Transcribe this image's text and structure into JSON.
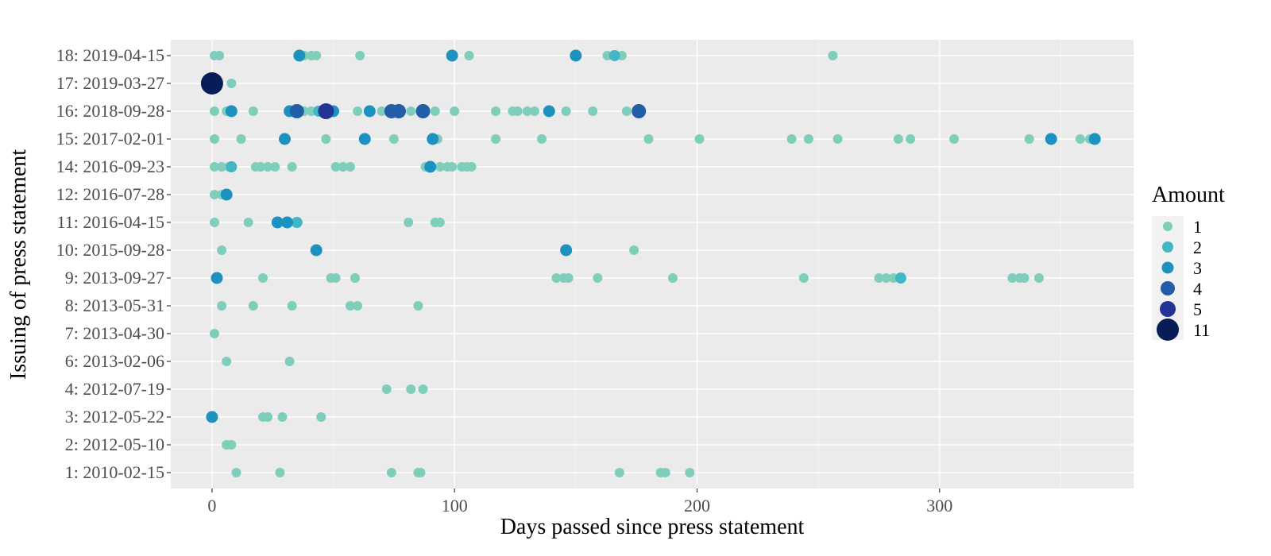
{
  "chart_data": {
    "type": "scatter",
    "xlabel": "Days passed since press statement",
    "ylabel": "Issuing of press statement",
    "xlim": [
      -17,
      380
    ],
    "x_ticks": [
      0,
      100,
      200,
      300
    ],
    "categories": [
      "1: 2010-02-15",
      "2: 2012-05-10",
      "3: 2012-05-22",
      "4: 2012-07-19",
      "6: 2013-02-06",
      "7: 2013-04-30",
      "8: 2013-05-31",
      "9: 2013-09-27",
      "10: 2015-09-28",
      "11: 2016-04-15",
      "12: 2016-07-28",
      "14: 2016-09-23",
      "15: 2017-02-01",
      "16: 2018-09-28",
      "17: 2019-03-27",
      "18: 2019-04-15"
    ],
    "legend": {
      "title": "Amount",
      "position": "right",
      "entries": [
        {
          "label": "1",
          "amount": 1,
          "color": "#7fcdbb"
        },
        {
          "label": "2",
          "amount": 2,
          "color": "#41b6c4"
        },
        {
          "label": "3",
          "amount": 3,
          "color": "#1d91c0"
        },
        {
          "label": "4",
          "amount": 4,
          "color": "#225ea8"
        },
        {
          "label": "5",
          "amount": 5,
          "color": "#253494"
        },
        {
          "label": "11",
          "amount": 11,
          "color": "#081d58"
        }
      ]
    },
    "grid": true,
    "background": "#ebebeb",
    "points": [
      {
        "y": "1: 2010-02-15",
        "x": 10,
        "amount": 1
      },
      {
        "y": "1: 2010-02-15",
        "x": 28,
        "amount": 1
      },
      {
        "y": "1: 2010-02-15",
        "x": 74,
        "amount": 1
      },
      {
        "y": "1: 2010-02-15",
        "x": 85,
        "amount": 1
      },
      {
        "y": "1: 2010-02-15",
        "x": 86,
        "amount": 1
      },
      {
        "y": "1: 2010-02-15",
        "x": 168,
        "amount": 1
      },
      {
        "y": "1: 2010-02-15",
        "x": 185,
        "amount": 1
      },
      {
        "y": "1: 2010-02-15",
        "x": 187,
        "amount": 1
      },
      {
        "y": "1: 2010-02-15",
        "x": 197,
        "amount": 1
      },
      {
        "y": "2: 2012-05-10",
        "x": 6,
        "amount": 1
      },
      {
        "y": "2: 2012-05-10",
        "x": 8,
        "amount": 1
      },
      {
        "y": "3: 2012-05-22",
        "x": 0,
        "amount": 3
      },
      {
        "y": "3: 2012-05-22",
        "x": 21,
        "amount": 1
      },
      {
        "y": "3: 2012-05-22",
        "x": 23,
        "amount": 1
      },
      {
        "y": "3: 2012-05-22",
        "x": 29,
        "amount": 1
      },
      {
        "y": "3: 2012-05-22",
        "x": 45,
        "amount": 1
      },
      {
        "y": "4: 2012-07-19",
        "x": 72,
        "amount": 1
      },
      {
        "y": "4: 2012-07-19",
        "x": 82,
        "amount": 1
      },
      {
        "y": "4: 2012-07-19",
        "x": 87,
        "amount": 1
      },
      {
        "y": "6: 2013-02-06",
        "x": 6,
        "amount": 1
      },
      {
        "y": "6: 2013-02-06",
        "x": 32,
        "amount": 1
      },
      {
        "y": "7: 2013-04-30",
        "x": 1,
        "amount": 1
      },
      {
        "y": "8: 2013-05-31",
        "x": 4,
        "amount": 1
      },
      {
        "y": "8: 2013-05-31",
        "x": 17,
        "amount": 1
      },
      {
        "y": "8: 2013-05-31",
        "x": 33,
        "amount": 1
      },
      {
        "y": "8: 2013-05-31",
        "x": 57,
        "amount": 1
      },
      {
        "y": "8: 2013-05-31",
        "x": 60,
        "amount": 1
      },
      {
        "y": "8: 2013-05-31",
        "x": 85,
        "amount": 1
      },
      {
        "y": "9: 2013-09-27",
        "x": 2,
        "amount": 3
      },
      {
        "y": "9: 2013-09-27",
        "x": 21,
        "amount": 1
      },
      {
        "y": "9: 2013-09-27",
        "x": 49,
        "amount": 1
      },
      {
        "y": "9: 2013-09-27",
        "x": 51,
        "amount": 1
      },
      {
        "y": "9: 2013-09-27",
        "x": 59,
        "amount": 1
      },
      {
        "y": "9: 2013-09-27",
        "x": 142,
        "amount": 1
      },
      {
        "y": "9: 2013-09-27",
        "x": 145,
        "amount": 1
      },
      {
        "y": "9: 2013-09-27",
        "x": 147,
        "amount": 1
      },
      {
        "y": "9: 2013-09-27",
        "x": 159,
        "amount": 1
      },
      {
        "y": "9: 2013-09-27",
        "x": 190,
        "amount": 1
      },
      {
        "y": "9: 2013-09-27",
        "x": 244,
        "amount": 1
      },
      {
        "y": "9: 2013-09-27",
        "x": 275,
        "amount": 1
      },
      {
        "y": "9: 2013-09-27",
        "x": 278,
        "amount": 1
      },
      {
        "y": "9: 2013-09-27",
        "x": 281,
        "amount": 1
      },
      {
        "y": "9: 2013-09-27",
        "x": 284,
        "amount": 2
      },
      {
        "y": "9: 2013-09-27",
        "x": 330,
        "amount": 1
      },
      {
        "y": "9: 2013-09-27",
        "x": 333,
        "amount": 1
      },
      {
        "y": "9: 2013-09-27",
        "x": 335,
        "amount": 1
      },
      {
        "y": "9: 2013-09-27",
        "x": 341,
        "amount": 1
      },
      {
        "y": "10: 2015-09-28",
        "x": 4,
        "amount": 1
      },
      {
        "y": "10: 2015-09-28",
        "x": 43,
        "amount": 3
      },
      {
        "y": "10: 2015-09-28",
        "x": 146,
        "amount": 3
      },
      {
        "y": "10: 2015-09-28",
        "x": 174,
        "amount": 1
      },
      {
        "y": "11: 2016-04-15",
        "x": 1,
        "amount": 1
      },
      {
        "y": "11: 2016-04-15",
        "x": 15,
        "amount": 1
      },
      {
        "y": "11: 2016-04-15",
        "x": 27,
        "amount": 3
      },
      {
        "y": "11: 2016-04-15",
        "x": 31,
        "amount": 3
      },
      {
        "y": "11: 2016-04-15",
        "x": 35,
        "amount": 2
      },
      {
        "y": "11: 2016-04-15",
        "x": 81,
        "amount": 1
      },
      {
        "y": "11: 2016-04-15",
        "x": 92,
        "amount": 1
      },
      {
        "y": "11: 2016-04-15",
        "x": 94,
        "amount": 1
      },
      {
        "y": "12: 2016-07-28",
        "x": 1,
        "amount": 1
      },
      {
        "y": "12: 2016-07-28",
        "x": 4,
        "amount": 1
      },
      {
        "y": "12: 2016-07-28",
        "x": 6,
        "amount": 3
      },
      {
        "y": "14: 2016-09-23",
        "x": 1,
        "amount": 1
      },
      {
        "y": "14: 2016-09-23",
        "x": 4,
        "amount": 1
      },
      {
        "y": "14: 2016-09-23",
        "x": 7,
        "amount": 1
      },
      {
        "y": "14: 2016-09-23",
        "x": 8,
        "amount": 2
      },
      {
        "y": "14: 2016-09-23",
        "x": 18,
        "amount": 1
      },
      {
        "y": "14: 2016-09-23",
        "x": 20,
        "amount": 1
      },
      {
        "y": "14: 2016-09-23",
        "x": 23,
        "amount": 1
      },
      {
        "y": "14: 2016-09-23",
        "x": 26,
        "amount": 1
      },
      {
        "y": "14: 2016-09-23",
        "x": 33,
        "amount": 1
      },
      {
        "y": "14: 2016-09-23",
        "x": 51,
        "amount": 1
      },
      {
        "y": "14: 2016-09-23",
        "x": 54,
        "amount": 1
      },
      {
        "y": "14: 2016-09-23",
        "x": 57,
        "amount": 1
      },
      {
        "y": "14: 2016-09-23",
        "x": 88,
        "amount": 1
      },
      {
        "y": "14: 2016-09-23",
        "x": 90,
        "amount": 3
      },
      {
        "y": "14: 2016-09-23",
        "x": 94,
        "amount": 1
      },
      {
        "y": "14: 2016-09-23",
        "x": 97,
        "amount": 1
      },
      {
        "y": "14: 2016-09-23",
        "x": 99,
        "amount": 1
      },
      {
        "y": "14: 2016-09-23",
        "x": 103,
        "amount": 1
      },
      {
        "y": "14: 2016-09-23",
        "x": 105,
        "amount": 1
      },
      {
        "y": "14: 2016-09-23",
        "x": 107,
        "amount": 1
      },
      {
        "y": "15: 2017-02-01",
        "x": 1,
        "amount": 1
      },
      {
        "y": "15: 2017-02-01",
        "x": 12,
        "amount": 1
      },
      {
        "y": "15: 2017-02-01",
        "x": 30,
        "amount": 3
      },
      {
        "y": "15: 2017-02-01",
        "x": 47,
        "amount": 1
      },
      {
        "y": "15: 2017-02-01",
        "x": 63,
        "amount": 3
      },
      {
        "y": "15: 2017-02-01",
        "x": 75,
        "amount": 1
      },
      {
        "y": "15: 2017-02-01",
        "x": 91,
        "amount": 3
      },
      {
        "y": "15: 2017-02-01",
        "x": 93,
        "amount": 1
      },
      {
        "y": "15: 2017-02-01",
        "x": 117,
        "amount": 1
      },
      {
        "y": "15: 2017-02-01",
        "x": 136,
        "amount": 1
      },
      {
        "y": "15: 2017-02-01",
        "x": 180,
        "amount": 1
      },
      {
        "y": "15: 2017-02-01",
        "x": 201,
        "amount": 1
      },
      {
        "y": "15: 2017-02-01",
        "x": 239,
        "amount": 1
      },
      {
        "y": "15: 2017-02-01",
        "x": 246,
        "amount": 1
      },
      {
        "y": "15: 2017-02-01",
        "x": 258,
        "amount": 1
      },
      {
        "y": "15: 2017-02-01",
        "x": 283,
        "amount": 1
      },
      {
        "y": "15: 2017-02-01",
        "x": 288,
        "amount": 1
      },
      {
        "y": "15: 2017-02-01",
        "x": 306,
        "amount": 1
      },
      {
        "y": "15: 2017-02-01",
        "x": 337,
        "amount": 1
      },
      {
        "y": "15: 2017-02-01",
        "x": 346,
        "amount": 3
      },
      {
        "y": "15: 2017-02-01",
        "x": 358,
        "amount": 1
      },
      {
        "y": "15: 2017-02-01",
        "x": 362,
        "amount": 1
      },
      {
        "y": "15: 2017-02-01",
        "x": 364,
        "amount": 3
      },
      {
        "y": "16: 2018-09-28",
        "x": 1,
        "amount": 1
      },
      {
        "y": "16: 2018-09-28",
        "x": 6,
        "amount": 1
      },
      {
        "y": "16: 2018-09-28",
        "x": 8,
        "amount": 3
      },
      {
        "y": "16: 2018-09-28",
        "x": 17,
        "amount": 1
      },
      {
        "y": "16: 2018-09-28",
        "x": 32,
        "amount": 3
      },
      {
        "y": "16: 2018-09-28",
        "x": 35,
        "amount": 4
      },
      {
        "y": "16: 2018-09-28",
        "x": 38,
        "amount": 1
      },
      {
        "y": "16: 2018-09-28",
        "x": 41,
        "amount": 1
      },
      {
        "y": "16: 2018-09-28",
        "x": 44,
        "amount": 2
      },
      {
        "y": "16: 2018-09-28",
        "x": 47,
        "amount": 5
      },
      {
        "y": "16: 2018-09-28",
        "x": 50,
        "amount": 3
      },
      {
        "y": "16: 2018-09-28",
        "x": 60,
        "amount": 1
      },
      {
        "y": "16: 2018-09-28",
        "x": 65,
        "amount": 3
      },
      {
        "y": "16: 2018-09-28",
        "x": 70,
        "amount": 1
      },
      {
        "y": "16: 2018-09-28",
        "x": 74,
        "amount": 4
      },
      {
        "y": "16: 2018-09-28",
        "x": 77,
        "amount": 4
      },
      {
        "y": "16: 2018-09-28",
        "x": 82,
        "amount": 1
      },
      {
        "y": "16: 2018-09-28",
        "x": 87,
        "amount": 4
      },
      {
        "y": "16: 2018-09-28",
        "x": 92,
        "amount": 1
      },
      {
        "y": "16: 2018-09-28",
        "x": 100,
        "amount": 1
      },
      {
        "y": "16: 2018-09-28",
        "x": 117,
        "amount": 1
      },
      {
        "y": "16: 2018-09-28",
        "x": 124,
        "amount": 1
      },
      {
        "y": "16: 2018-09-28",
        "x": 126,
        "amount": 1
      },
      {
        "y": "16: 2018-09-28",
        "x": 130,
        "amount": 1
      },
      {
        "y": "16: 2018-09-28",
        "x": 133,
        "amount": 1
      },
      {
        "y": "16: 2018-09-28",
        "x": 139,
        "amount": 3
      },
      {
        "y": "16: 2018-09-28",
        "x": 146,
        "amount": 1
      },
      {
        "y": "16: 2018-09-28",
        "x": 157,
        "amount": 1
      },
      {
        "y": "16: 2018-09-28",
        "x": 171,
        "amount": 1
      },
      {
        "y": "16: 2018-09-28",
        "x": 176,
        "amount": 4
      },
      {
        "y": "17: 2019-03-27",
        "x": 0,
        "amount": 11
      },
      {
        "y": "17: 2019-03-27",
        "x": 8,
        "amount": 1
      },
      {
        "y": "18: 2019-04-15",
        "x": 1,
        "amount": 1
      },
      {
        "y": "18: 2019-04-15",
        "x": 3,
        "amount": 1
      },
      {
        "y": "18: 2019-04-15",
        "x": 36,
        "amount": 3
      },
      {
        "y": "18: 2019-04-15",
        "x": 38,
        "amount": 1
      },
      {
        "y": "18: 2019-04-15",
        "x": 41,
        "amount": 1
      },
      {
        "y": "18: 2019-04-15",
        "x": 43,
        "amount": 1
      },
      {
        "y": "18: 2019-04-15",
        "x": 61,
        "amount": 1
      },
      {
        "y": "18: 2019-04-15",
        "x": 99,
        "amount": 3
      },
      {
        "y": "18: 2019-04-15",
        "x": 106,
        "amount": 1
      },
      {
        "y": "18: 2019-04-15",
        "x": 150,
        "amount": 3
      },
      {
        "y": "18: 2019-04-15",
        "x": 163,
        "amount": 1
      },
      {
        "y": "18: 2019-04-15",
        "x": 166,
        "amount": 2
      },
      {
        "y": "18: 2019-04-15",
        "x": 169,
        "amount": 1
      },
      {
        "y": "18: 2019-04-15",
        "x": 256,
        "amount": 1
      }
    ]
  }
}
